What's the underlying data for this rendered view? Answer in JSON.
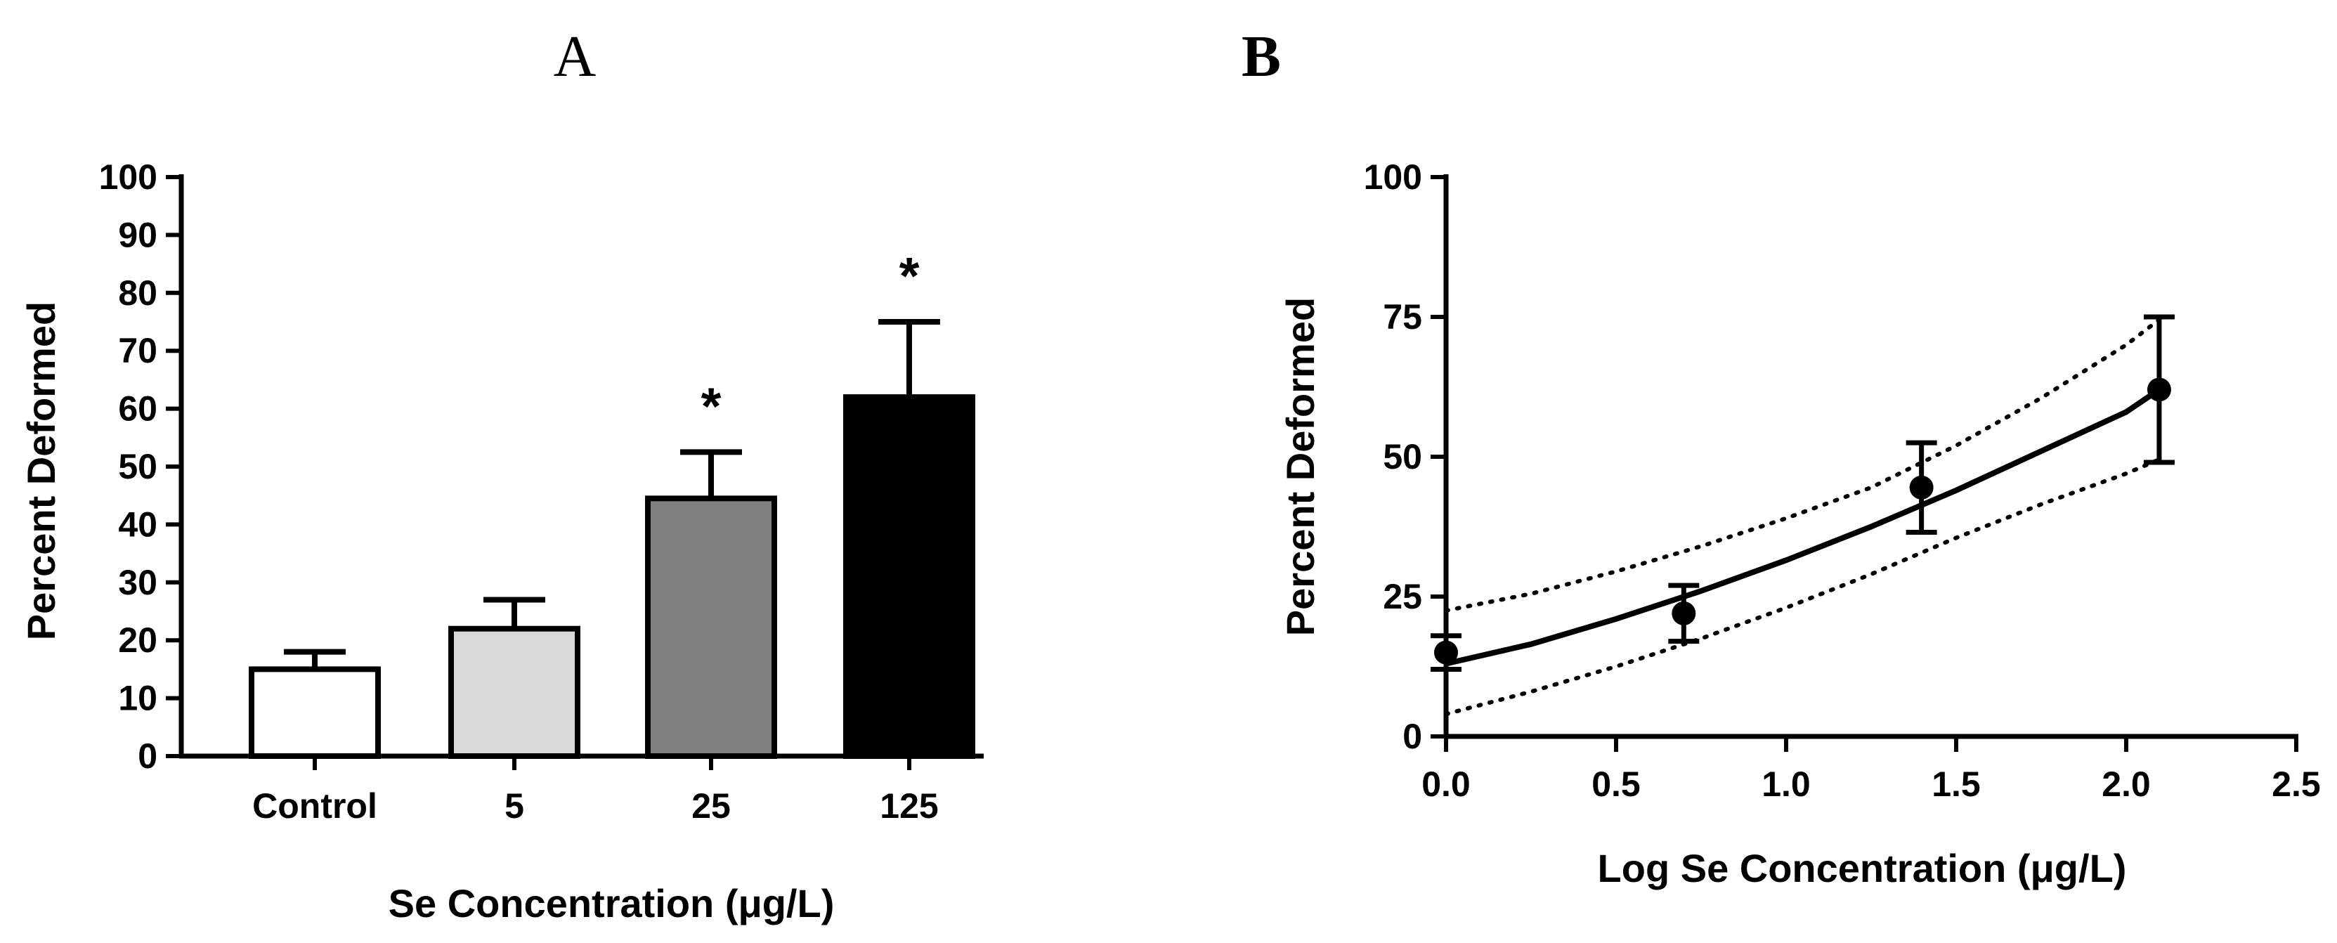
{
  "chart_data": [
    {
      "type": "bar",
      "panel_label": "A",
      "title": "",
      "categories": [
        "Control",
        "5",
        "25",
        "125"
      ],
      "values": [
        15,
        22,
        44.5,
        62
      ],
      "errors": [
        3,
        5,
        8,
        13
      ],
      "significance": [
        "",
        "",
        "*",
        "*"
      ],
      "bar_colors": [
        "#ffffff",
        "#d9d9d9",
        "#808080",
        "#000000"
      ],
      "xlabel": "Se Concentration (μg/L)",
      "ylabel": "Percent Deformed",
      "ylim": [
        0,
        100
      ],
      "yticks": [
        0,
        10,
        20,
        30,
        40,
        50,
        60,
        70,
        80,
        90,
        100
      ],
      "grid": false
    },
    {
      "type": "scatter",
      "panel_label": "B",
      "title": "",
      "x": [
        0.0,
        0.699,
        1.398,
        2.097
      ],
      "y": [
        15,
        22,
        44.5,
        62
      ],
      "errors": [
        3,
        5,
        8,
        13
      ],
      "fit": {
        "name": "regression fit",
        "x": [
          0.0,
          0.25,
          0.5,
          0.75,
          1.0,
          1.25,
          1.5,
          1.75,
          2.0,
          2.097
        ],
        "y": [
          13,
          16.5,
          21,
          26,
          31.5,
          37.5,
          44,
          51,
          58,
          62
        ]
      },
      "ci_upper": {
        "name": "95% confidence band upper",
        "x": [
          0.0,
          0.25,
          0.5,
          0.75,
          1.0,
          1.25,
          1.5,
          1.75,
          2.0,
          2.097
        ],
        "y": [
          22.5,
          25.5,
          29.5,
          34,
          39,
          44.5,
          52,
          60.5,
          70,
          74.5
        ]
      },
      "ci_lower": {
        "name": "95% confidence band lower",
        "x": [
          0.0,
          0.25,
          0.5,
          0.75,
          1.0,
          1.25,
          1.5,
          1.75,
          2.0,
          2.097
        ],
        "y": [
          4,
          8,
          12.5,
          17.5,
          23,
          29,
          35.5,
          41.5,
          47,
          49.5
        ]
      },
      "xlabel": "Log Se Concentration (μg/L)",
      "ylabel": "Percent Deformed",
      "xlim": [
        0,
        2.5
      ],
      "ylim": [
        0,
        100
      ],
      "xticks": [
        0.0,
        0.5,
        1.0,
        1.5,
        2.0,
        2.5
      ],
      "xtick_labels": [
        "0.0",
        "0.5",
        "1.0",
        "1.5",
        "2.0",
        "2.5"
      ],
      "yticks": [
        0,
        25,
        50,
        75,
        100
      ],
      "grid": false
    }
  ]
}
